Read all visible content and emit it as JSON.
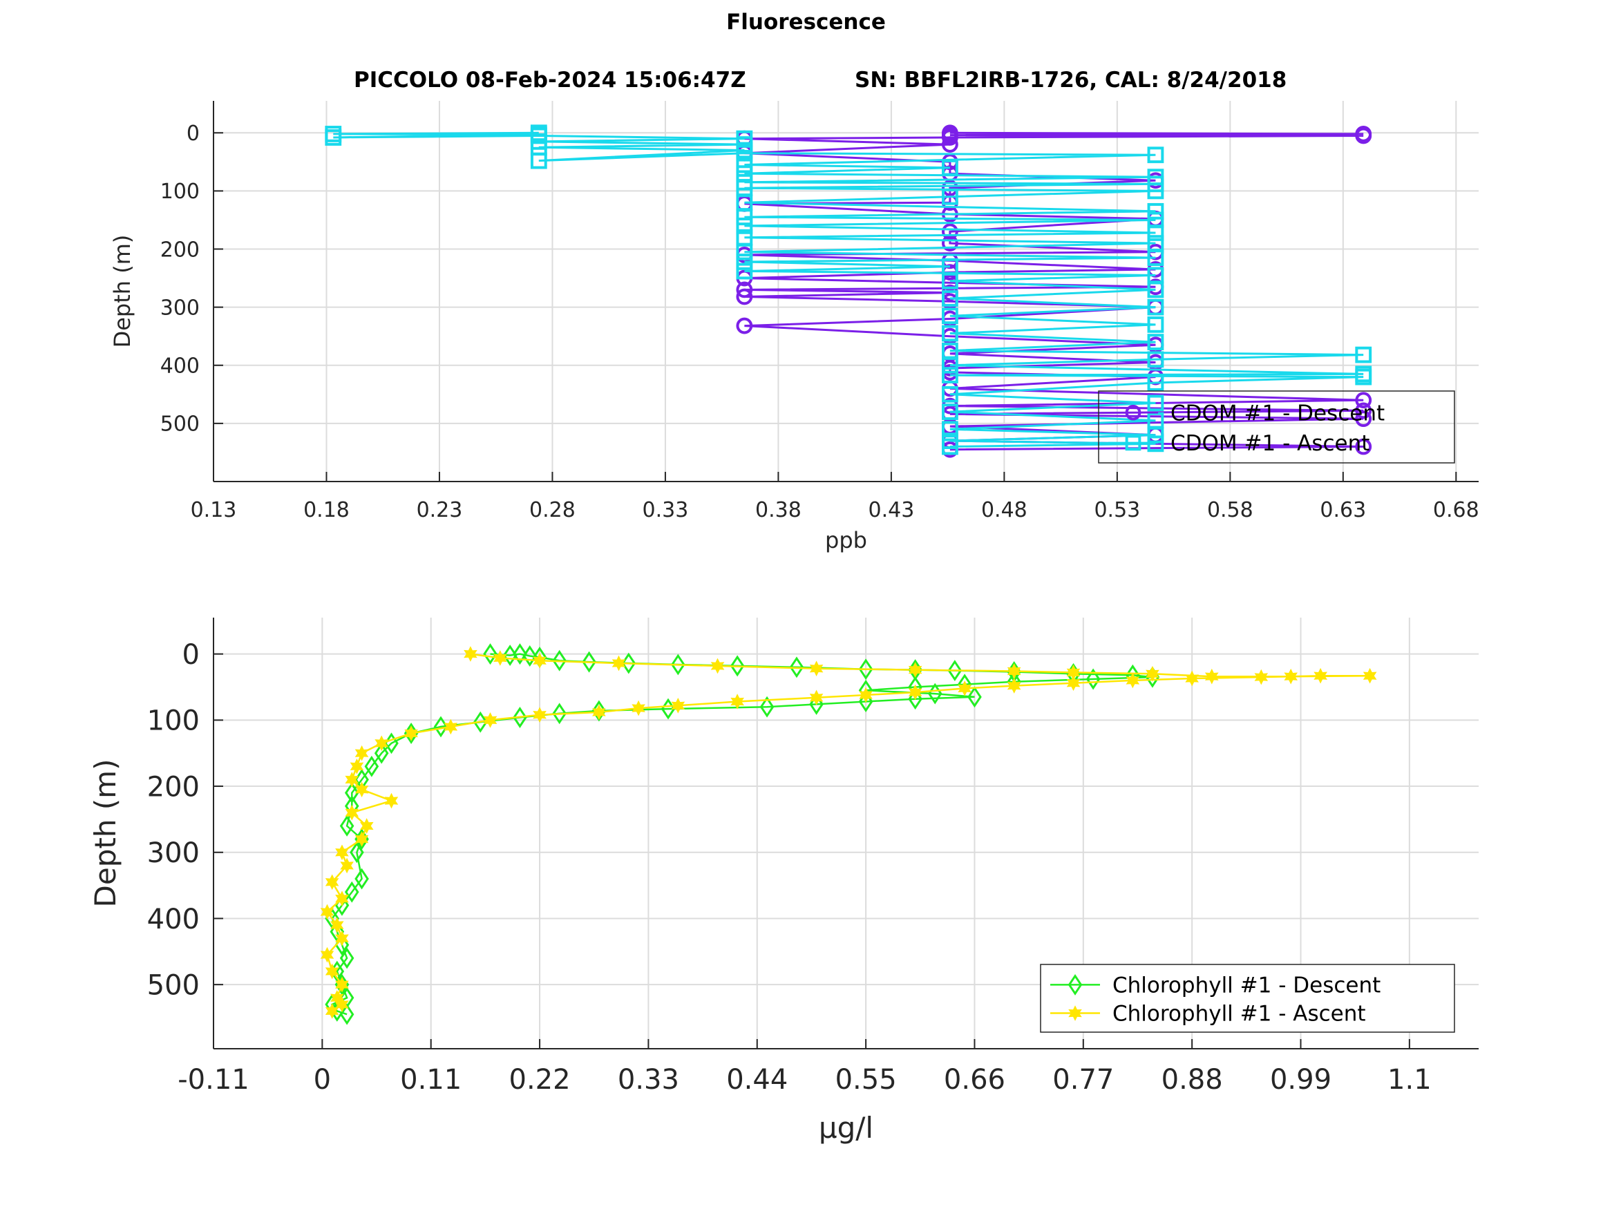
{
  "figure": {
    "title": "Fluorescence",
    "subtitle_left": "PICCOLO 08-Feb-2024 15:06:47Z",
    "subtitle_right": "SN: BBFL2IRB-1726, CAL: 8/24/2018"
  },
  "chart_data": [
    {
      "type": "line",
      "xlabel": "ppb",
      "ylabel": "Depth (m)",
      "xlim": [
        0.13,
        0.69
      ],
      "ylim": [
        -55,
        600
      ],
      "y_reversed": true,
      "grid": true,
      "x_ticks": [
        "0.13",
        "0.18",
        "0.23",
        "0.28",
        "0.33",
        "0.38",
        "0.43",
        "0.48",
        "0.53",
        "0.58",
        "0.63",
        "0.68"
      ],
      "y_ticks": [
        "0",
        "100",
        "200",
        "300",
        "400",
        "500"
      ],
      "legend_position": "bottom-right",
      "colors": {
        "descent": "#7b1fe8",
        "ascent": "#19d9ec"
      },
      "series": [
        {
          "name": "CDOM #1 - Descent",
          "marker": "circle",
          "points": [
            [
              0.456,
              0
            ],
            [
              0.639,
              2
            ],
            [
              0.456,
              4
            ],
            [
              0.639,
              5
            ],
            [
              0.456,
              8
            ],
            [
              0.365,
              10
            ],
            [
              0.456,
              20
            ],
            [
              0.365,
              35
            ],
            [
              0.456,
              50
            ],
            [
              0.456,
              70
            ],
            [
              0.547,
              82
            ],
            [
              0.456,
              95
            ],
            [
              0.456,
              120
            ],
            [
              0.365,
              122
            ],
            [
              0.456,
              140
            ],
            [
              0.547,
              148
            ],
            [
              0.456,
              170
            ],
            [
              0.456,
              190
            ],
            [
              0.547,
              205
            ],
            [
              0.365,
              210
            ],
            [
              0.456,
              220
            ],
            [
              0.547,
              235
            ],
            [
              0.456,
              240
            ],
            [
              0.365,
              250
            ],
            [
              0.456,
              258
            ],
            [
              0.547,
              265
            ],
            [
              0.365,
              270
            ],
            [
              0.456,
              275
            ],
            [
              0.365,
              282
            ],
            [
              0.456,
              290
            ],
            [
              0.547,
              300
            ],
            [
              0.456,
              320
            ],
            [
              0.365,
              332
            ],
            [
              0.456,
              350
            ],
            [
              0.547,
              365
            ],
            [
              0.456,
              380
            ],
            [
              0.547,
              395
            ],
            [
              0.456,
              405
            ],
            [
              0.456,
              412
            ],
            [
              0.547,
              420
            ],
            [
              0.456,
              440
            ],
            [
              0.639,
              460
            ],
            [
              0.456,
              470
            ],
            [
              0.639,
              478
            ],
            [
              0.456,
              484
            ],
            [
              0.639,
              492
            ],
            [
              0.456,
              505
            ],
            [
              0.547,
              520
            ],
            [
              0.456,
              530
            ],
            [
              0.639,
              540
            ],
            [
              0.456,
              545
            ]
          ]
        },
        {
          "name": "CDOM #1 - Ascent",
          "marker": "square",
          "points": [
            [
              0.456,
              540
            ],
            [
              0.547,
              535
            ],
            [
              0.456,
              530
            ],
            [
              0.547,
              520
            ],
            [
              0.456,
              510
            ],
            [
              0.547,
              495
            ],
            [
              0.456,
              480
            ],
            [
              0.547,
              465
            ],
            [
              0.456,
              450
            ],
            [
              0.547,
              430
            ],
            [
              0.639,
              420
            ],
            [
              0.456,
              417
            ],
            [
              0.639,
              415
            ],
            [
              0.456,
              400
            ],
            [
              0.547,
              390
            ],
            [
              0.639,
              382
            ],
            [
              0.456,
              375
            ],
            [
              0.547,
              360
            ],
            [
              0.456,
              345
            ],
            [
              0.547,
              330
            ],
            [
              0.456,
              315
            ],
            [
              0.547,
              300
            ],
            [
              0.456,
              285
            ],
            [
              0.547,
              270
            ],
            [
              0.456,
              255
            ],
            [
              0.547,
              245
            ],
            [
              0.365,
              238
            ],
            [
              0.456,
              230
            ],
            [
              0.365,
              222
            ],
            [
              0.547,
              215
            ],
            [
              0.365,
              205
            ],
            [
              0.547,
              190
            ],
            [
              0.365,
              180
            ],
            [
              0.547,
              172
            ],
            [
              0.365,
              160
            ],
            [
              0.547,
              150
            ],
            [
              0.365,
              145
            ],
            [
              0.547,
              135
            ],
            [
              0.365,
              120
            ],
            [
              0.456,
              110
            ],
            [
              0.547,
              100
            ],
            [
              0.365,
              95
            ],
            [
              0.547,
              88
            ],
            [
              0.365,
              85
            ],
            [
              0.547,
              76
            ],
            [
              0.365,
              70
            ],
            [
              0.456,
              60
            ],
            [
              0.365,
              55
            ],
            [
              0.547,
              38
            ],
            [
              0.365,
              35
            ],
            [
              0.274,
              48
            ],
            [
              0.365,
              30
            ],
            [
              0.274,
              25
            ],
            [
              0.365,
              20
            ],
            [
              0.274,
              15
            ],
            [
              0.365,
              10
            ],
            [
              0.274,
              5
            ],
            [
              0.183,
              8
            ],
            [
              0.274,
              3
            ],
            [
              0.183,
              2
            ],
            [
              0.274,
              0
            ]
          ]
        }
      ]
    },
    {
      "type": "line",
      "xlabel": "μg/l",
      "ylabel": "Depth (m)",
      "xlim": [
        -0.11,
        1.17
      ],
      "ylim": [
        -55,
        597
      ],
      "y_reversed": true,
      "grid": true,
      "x_ticks": [
        "-0.11",
        "0",
        "0.11",
        "0.22",
        "0.33",
        "0.44",
        "0.55",
        "0.66",
        "0.77",
        "0.88",
        "0.99",
        "1.1"
      ],
      "y_ticks": [
        "0",
        "100",
        "200",
        "300",
        "400",
        "500"
      ],
      "legend_position": "bottom-right",
      "colors": {
        "descent": "#22ee22",
        "ascent": "#ffe600"
      },
      "series": [
        {
          "name": "Chlorophyll #1 - Descent",
          "marker": "diamond",
          "points": [
            [
              0.17,
              0
            ],
            [
              0.19,
              2
            ],
            [
              0.2,
              0
            ],
            [
              0.21,
              3
            ],
            [
              0.22,
              5
            ],
            [
              0.24,
              10
            ],
            [
              0.27,
              12
            ],
            [
              0.31,
              14
            ],
            [
              0.36,
              16
            ],
            [
              0.42,
              18
            ],
            [
              0.48,
              20
            ],
            [
              0.55,
              23
            ],
            [
              0.6,
              24
            ],
            [
              0.64,
              25
            ],
            [
              0.7,
              27
            ],
            [
              0.76,
              30
            ],
            [
              0.82,
              32
            ],
            [
              0.84,
              35
            ],
            [
              0.78,
              38
            ],
            [
              0.7,
              42
            ],
            [
              0.65,
              46
            ],
            [
              0.6,
              50
            ],
            [
              0.55,
              55
            ],
            [
              0.62,
              60
            ],
            [
              0.66,
              65
            ],
            [
              0.6,
              68
            ],
            [
              0.55,
              72
            ],
            [
              0.5,
              76
            ],
            [
              0.45,
              80
            ],
            [
              0.35,
              83
            ],
            [
              0.28,
              86
            ],
            [
              0.24,
              90
            ],
            [
              0.2,
              96
            ],
            [
              0.16,
              103
            ],
            [
              0.12,
              110
            ],
            [
              0.09,
              120
            ],
            [
              0.07,
              135
            ],
            [
              0.06,
              150
            ],
            [
              0.05,
              170
            ],
            [
              0.04,
              190
            ],
            [
              0.03,
              210
            ],
            [
              0.03,
              230
            ],
            [
              0.025,
              260
            ],
            [
              0.04,
              280
            ],
            [
              0.035,
              300
            ],
            [
              0.04,
              340
            ],
            [
              0.03,
              360
            ],
            [
              0.02,
              380
            ],
            [
              0.01,
              400
            ],
            [
              0.015,
              420
            ],
            [
              0.02,
              440
            ],
            [
              0.025,
              460
            ],
            [
              0.015,
              480
            ],
            [
              0.02,
              500
            ],
            [
              0.025,
              520
            ],
            [
              0.01,
              530
            ],
            [
              0.015,
              540
            ],
            [
              0.025,
              545
            ]
          ]
        },
        {
          "name": "Chlorophyll #1 - Ascent",
          "marker": "star",
          "points": [
            [
              0.01,
              540
            ],
            [
              0.02,
              530
            ],
            [
              0.015,
              520
            ],
            [
              0.02,
              500
            ],
            [
              0.01,
              480
            ],
            [
              0.005,
              455
            ],
            [
              0.02,
              430
            ],
            [
              0.015,
              410
            ],
            [
              0.005,
              390
            ],
            [
              0.02,
              370
            ],
            [
              0.01,
              345
            ],
            [
              0.025,
              320
            ],
            [
              0.02,
              300
            ],
            [
              0.04,
              280
            ],
            [
              0.045,
              260
            ],
            [
              0.03,
              240
            ],
            [
              0.07,
              222
            ],
            [
              0.04,
              205
            ],
            [
              0.03,
              190
            ],
            [
              0.035,
              170
            ],
            [
              0.04,
              150
            ],
            [
              0.06,
              135
            ],
            [
              0.09,
              120
            ],
            [
              0.13,
              110
            ],
            [
              0.17,
              100
            ],
            [
              0.22,
              92
            ],
            [
              0.28,
              88
            ],
            [
              0.32,
              82
            ],
            [
              0.36,
              78
            ],
            [
              0.42,
              72
            ],
            [
              0.5,
              66
            ],
            [
              0.55,
              62
            ],
            [
              0.6,
              58
            ],
            [
              0.65,
              52
            ],
            [
              0.7,
              48
            ],
            [
              0.76,
              44
            ],
            [
              0.82,
              40
            ],
            [
              0.88,
              37
            ],
            [
              0.95,
              35
            ],
            [
              1.01,
              33
            ],
            [
              1.06,
              33
            ],
            [
              0.98,
              34
            ],
            [
              0.9,
              34
            ],
            [
              0.84,
              30
            ],
            [
              0.76,
              28
            ],
            [
              0.7,
              26
            ],
            [
              0.6,
              24
            ],
            [
              0.5,
              22
            ],
            [
              0.4,
              18
            ],
            [
              0.3,
              14
            ],
            [
              0.22,
              10
            ],
            [
              0.18,
              6
            ],
            [
              0.15,
              0
            ]
          ]
        }
      ]
    }
  ]
}
